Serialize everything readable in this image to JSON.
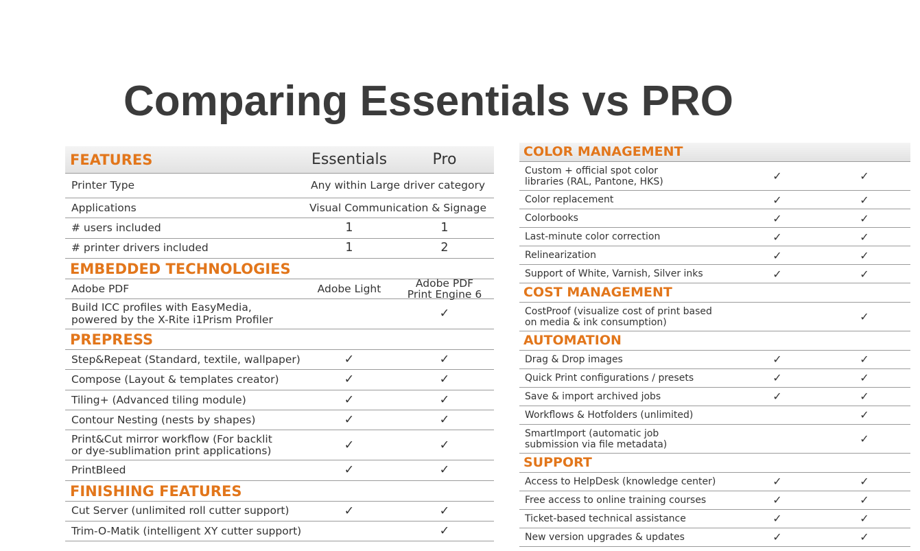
{
  "title": "Comparing Essentials vs PRO",
  "left": {
    "sections": [
      {
        "heading": "FEATURES",
        "columns": [
          "Essentials",
          "Pro"
        ],
        "rows": [
          {
            "label": "Printer Type",
            "cells": [
              "Any within Large driver category"
            ]
          },
          {
            "label": "Applications",
            "cells": [
              "Visual Communication & Signage"
            ]
          },
          {
            "label": "# users included",
            "cells": [
              "1",
              "1"
            ]
          },
          {
            "label": "# printer drivers included",
            "cells": [
              "1",
              "2"
            ]
          }
        ]
      },
      {
        "heading": "EMBEDDED TECHNOLOGIES",
        "rows": [
          {
            "label": "Adobe PDF",
            "cells": [
              "Adobe Light",
              "Adobe PDF\nPrint Engine 6"
            ]
          },
          {
            "label": "Build ICC profiles with EasyMedia,\npowered by the X-Rite i1Prism Profiler",
            "cells": [
              null,
              "✓"
            ]
          }
        ]
      },
      {
        "heading": "PREPRESS",
        "rows": [
          {
            "label": "Step&Repeat (Standard, textile, wallpaper)",
            "cells": [
              "✓",
              "✓"
            ]
          },
          {
            "label": "Compose (Layout & templates creator)",
            "cells": [
              "✓",
              "✓"
            ]
          },
          {
            "label": "Tiling+ (Advanced tiling module)",
            "cells": [
              "✓",
              "✓"
            ]
          },
          {
            "label": "Contour Nesting (nests by shapes)",
            "cells": [
              "✓",
              "✓"
            ]
          },
          {
            "label": "Print&Cut mirror workflow (For backlit\nor dye-sublimation print applications)",
            "cells": [
              "✓",
              "✓"
            ]
          },
          {
            "label": "PrintBleed",
            "cells": [
              "✓",
              "✓"
            ]
          }
        ]
      },
      {
        "heading": "FINISHING FEATURES",
        "rows": [
          {
            "label": "Cut Server (unlimited roll cutter support)",
            "cells": [
              "✓",
              "✓"
            ]
          },
          {
            "label": "Trim-O-Matik (intelligent XY cutter support)",
            "cells": [
              null,
              "✓"
            ]
          }
        ]
      }
    ]
  },
  "right": {
    "sections": [
      {
        "heading": "COLOR MANAGEMENT",
        "rows": [
          {
            "label": "Custom + official spot color\nlibraries (RAL, Pantone, HKS)",
            "cells": [
              "✓",
              "✓"
            ]
          },
          {
            "label": "Color replacement",
            "cells": [
              "✓",
              "✓"
            ]
          },
          {
            "label": "Colorbooks",
            "cells": [
              "✓",
              "✓"
            ]
          },
          {
            "label": "Last-minute color correction",
            "cells": [
              "✓",
              "✓"
            ]
          },
          {
            "label": "Relinearization",
            "cells": [
              "✓",
              "✓"
            ]
          },
          {
            "label": "Support of White, Varnish, Silver inks",
            "cells": [
              "✓",
              "✓"
            ]
          }
        ]
      },
      {
        "heading": "COST MANAGEMENT",
        "rows": [
          {
            "label": "CostProof (visualize cost of print based\non media & ink consumption)",
            "cells": [
              null,
              "✓"
            ]
          }
        ]
      },
      {
        "heading": "AUTOMATION",
        "rows": [
          {
            "label": "Drag & Drop images",
            "cells": [
              "✓",
              "✓"
            ]
          },
          {
            "label": "Quick Print configurations / presets",
            "cells": [
              "✓",
              "✓"
            ]
          },
          {
            "label": "Save & import archived jobs",
            "cells": [
              "✓",
              "✓"
            ]
          },
          {
            "label": "Workflows & Hotfolders (unlimited)",
            "cells": [
              null,
              "✓"
            ]
          },
          {
            "label": "SmartImport (automatic job\nsubmission via file metadata)",
            "cells": [
              null,
              "✓"
            ]
          }
        ]
      },
      {
        "heading": "SUPPORT",
        "rows": [
          {
            "label": "Access to HelpDesk (knowledge center)",
            "cells": [
              "✓",
              "✓"
            ]
          },
          {
            "label": "Free access to online training courses",
            "cells": [
              "✓",
              "✓"
            ]
          },
          {
            "label": "Ticket-based technical assistance",
            "cells": [
              "✓",
              "✓"
            ]
          },
          {
            "label": "New version upgrades & updates",
            "cells": [
              "✓",
              "✓"
            ]
          }
        ]
      }
    ]
  }
}
